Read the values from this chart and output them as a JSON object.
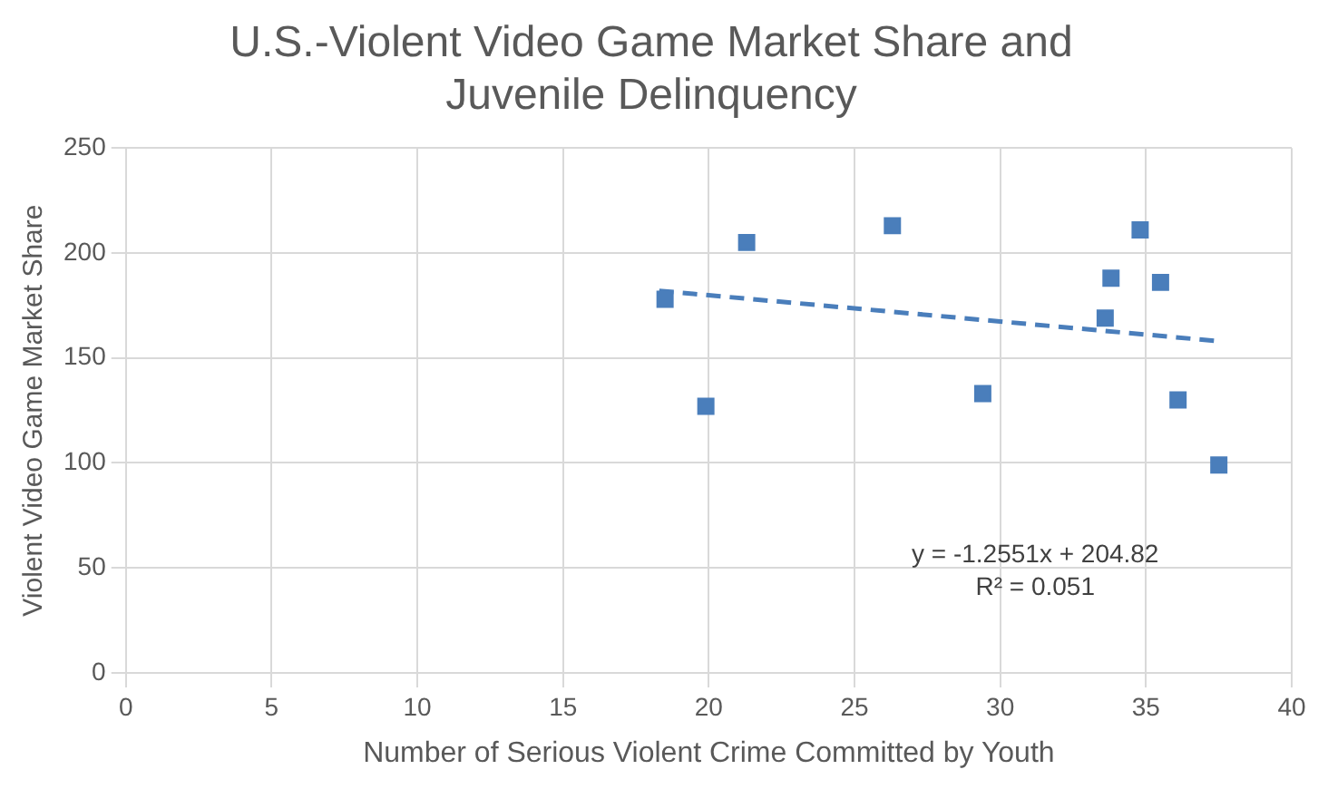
{
  "chart_data": {
    "type": "scatter",
    "title": "U.S.-Violent Video Game Market Share and Juvenile Delinquency",
    "xlabel": "Number of Serious Violent Crime Committed by Youth",
    "ylabel": "Violent Video Game Market Share",
    "series": [
      {
        "color": "#4a7ebb",
        "marker": "square",
        "x": [
          18.5,
          19.9,
          21.3,
          26.3,
          29.4,
          33.8,
          33.6,
          34.8,
          35.5,
          36.1,
          37.5
        ],
        "values": [
          178,
          127,
          205,
          213,
          133,
          188,
          169,
          211,
          186,
          130,
          99
        ]
      },
      {
        "type": "line",
        "color": "#4a7ebb",
        "line_style": "dashed",
        "marker": "none",
        "x": [
          18.3,
          37.5
        ],
        "values": [
          182,
          158
        ]
      }
    ],
    "xlim": [
      0,
      40
    ],
    "xticks": [
      0,
      5,
      10,
      15,
      20,
      25,
      30,
      35,
      40
    ],
    "ylim": [
      0,
      250
    ],
    "yticks": [
      0,
      50,
      100,
      150,
      200,
      250
    ],
    "grid": true,
    "legend": false,
    "annotations": [
      "y = -1.2551x + 204.82",
      "R² = 0.051"
    ]
  }
}
